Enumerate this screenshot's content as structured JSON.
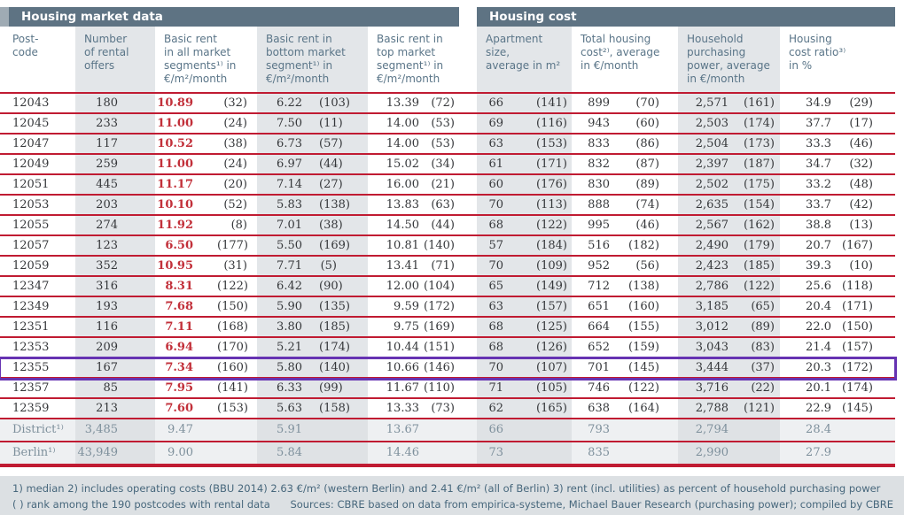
{
  "header": {
    "left_section_title": "Housing market data",
    "right_section_title": "Housing cost",
    "columns": [
      {
        "label": "Post-\ncode"
      },
      {
        "label": "Number\nof rental\noffers"
      },
      {
        "label": "Basic rent\nin all market\nsegments¹⁾ in\n€/m²/month"
      },
      {
        "label": "Basic rent in\nbottom market\nsegment¹⁾ in\n€/m²/month"
      },
      {
        "label": "Basic rent in\ntop market\nsegment¹⁾ in\n€/m²/month"
      },
      {
        "label": "Apartment size,\naverage in m²"
      },
      {
        "label": "Total housing\ncost²⁾, average\nin €/month"
      },
      {
        "label": "Household\npurchasing\npower, average\nin €/month"
      },
      {
        "label": "Housing\ncost ratio³⁾\nin %"
      }
    ]
  },
  "rows": [
    {
      "postcode": "12043",
      "offers": "180",
      "all": [
        "10.89",
        "(32)"
      ],
      "bottom": [
        "6.22",
        "(103)"
      ],
      "top": [
        "13.39",
        "(72)"
      ],
      "size": [
        "66",
        "(141)"
      ],
      "cost": [
        "899",
        "(70)"
      ],
      "power": [
        "2,571",
        "(161)"
      ],
      "ratio": [
        "34.9",
        "(29)"
      ],
      "highlighted": false
    },
    {
      "postcode": "12045",
      "offers": "233",
      "all": [
        "11.00",
        "(24)"
      ],
      "bottom": [
        "7.50",
        "(11)"
      ],
      "top": [
        "14.00",
        "(53)"
      ],
      "size": [
        "69",
        "(116)"
      ],
      "cost": [
        "943",
        "(60)"
      ],
      "power": [
        "2,503",
        "(174)"
      ],
      "ratio": [
        "37.7",
        "(17)"
      ],
      "highlighted": false
    },
    {
      "postcode": "12047",
      "offers": "117",
      "all": [
        "10.52",
        "(38)"
      ],
      "bottom": [
        "6.73",
        "(57)"
      ],
      "top": [
        "14.00",
        "(53)"
      ],
      "size": [
        "63",
        "(153)"
      ],
      "cost": [
        "833",
        "(86)"
      ],
      "power": [
        "2,504",
        "(173)"
      ],
      "ratio": [
        "33.3",
        "(46)"
      ],
      "highlighted": false
    },
    {
      "postcode": "12049",
      "offers": "259",
      "all": [
        "11.00",
        "(24)"
      ],
      "bottom": [
        "6.97",
        "(44)"
      ],
      "top": [
        "15.02",
        "(34)"
      ],
      "size": [
        "61",
        "(171)"
      ],
      "cost": [
        "832",
        "(87)"
      ],
      "power": [
        "2,397",
        "(187)"
      ],
      "ratio": [
        "34.7",
        "(32)"
      ],
      "highlighted": false
    },
    {
      "postcode": "12051",
      "offers": "445",
      "all": [
        "11.17",
        "(20)"
      ],
      "bottom": [
        "7.14",
        "(27)"
      ],
      "top": [
        "16.00",
        "(21)"
      ],
      "size": [
        "60",
        "(176)"
      ],
      "cost": [
        "830",
        "(89)"
      ],
      "power": [
        "2,502",
        "(175)"
      ],
      "ratio": [
        "33.2",
        "(48)"
      ],
      "highlighted": false
    },
    {
      "postcode": "12053",
      "offers": "203",
      "all": [
        "10.10",
        "(52)"
      ],
      "bottom": [
        "5.83",
        "(138)"
      ],
      "top": [
        "13.83",
        "(63)"
      ],
      "size": [
        "70",
        "(113)"
      ],
      "cost": [
        "888",
        "(74)"
      ],
      "power": [
        "2,635",
        "(154)"
      ],
      "ratio": [
        "33.7",
        "(42)"
      ],
      "highlighted": false
    },
    {
      "postcode": "12055",
      "offers": "274",
      "all": [
        "11.92",
        "(8)"
      ],
      "bottom": [
        "7.01",
        "(38)"
      ],
      "top": [
        "14.50",
        "(44)"
      ],
      "size": [
        "68",
        "(122)"
      ],
      "cost": [
        "995",
        "(46)"
      ],
      "power": [
        "2,567",
        "(162)"
      ],
      "ratio": [
        "38.8",
        "(13)"
      ],
      "highlighted": false
    },
    {
      "postcode": "12057",
      "offers": "123",
      "all": [
        "6.50",
        "(177)"
      ],
      "bottom": [
        "5.50",
        "(169)"
      ],
      "top": [
        "10.81",
        "(140)"
      ],
      "size": [
        "57",
        "(184)"
      ],
      "cost": [
        "516",
        "(182)"
      ],
      "power": [
        "2,490",
        "(179)"
      ],
      "ratio": [
        "20.7",
        "(167)"
      ],
      "highlighted": false
    },
    {
      "postcode": "12059",
      "offers": "352",
      "all": [
        "10.95",
        "(31)"
      ],
      "bottom": [
        "7.71",
        "(5)"
      ],
      "top": [
        "13.41",
        "(71)"
      ],
      "size": [
        "70",
        "(109)"
      ],
      "cost": [
        "952",
        "(56)"
      ],
      "power": [
        "2,423",
        "(185)"
      ],
      "ratio": [
        "39.3",
        "(10)"
      ],
      "highlighted": false
    },
    {
      "postcode": "12347",
      "offers": "316",
      "all": [
        "8.31",
        "(122)"
      ],
      "bottom": [
        "6.42",
        "(90)"
      ],
      "top": [
        "12.00",
        "(104)"
      ],
      "size": [
        "65",
        "(149)"
      ],
      "cost": [
        "712",
        "(138)"
      ],
      "power": [
        "2,786",
        "(122)"
      ],
      "ratio": [
        "25.6",
        "(118)"
      ],
      "highlighted": false
    },
    {
      "postcode": "12349",
      "offers": "193",
      "all": [
        "7.68",
        "(150)"
      ],
      "bottom": [
        "5.90",
        "(135)"
      ],
      "top": [
        "9.59",
        "(172)"
      ],
      "size": [
        "63",
        "(157)"
      ],
      "cost": [
        "651",
        "(160)"
      ],
      "power": [
        "3,185",
        "(65)"
      ],
      "ratio": [
        "20.4",
        "(171)"
      ],
      "highlighted": false
    },
    {
      "postcode": "12351",
      "offers": "116",
      "all": [
        "7.11",
        "(168)"
      ],
      "bottom": [
        "3.80",
        "(185)"
      ],
      "top": [
        "9.75",
        "(169)"
      ],
      "size": [
        "68",
        "(125)"
      ],
      "cost": [
        "664",
        "(155)"
      ],
      "power": [
        "3,012",
        "(89)"
      ],
      "ratio": [
        "22.0",
        "(150)"
      ],
      "highlighted": false
    },
    {
      "postcode": "12353",
      "offers": "209",
      "all": [
        "6.94",
        "(170)"
      ],
      "bottom": [
        "5.21",
        "(174)"
      ],
      "top": [
        "10.44",
        "(151)"
      ],
      "size": [
        "68",
        "(126)"
      ],
      "cost": [
        "652",
        "(159)"
      ],
      "power": [
        "3,043",
        "(83)"
      ],
      "ratio": [
        "21.4",
        "(157)"
      ],
      "highlighted": false
    },
    {
      "postcode": "12355",
      "offers": "167",
      "all": [
        "7.34",
        "(160)"
      ],
      "bottom": [
        "5.80",
        "(140)"
      ],
      "top": [
        "10.66",
        "(146)"
      ],
      "size": [
        "70",
        "(107)"
      ],
      "cost": [
        "701",
        "(145)"
      ],
      "power": [
        "3,444",
        "(37)"
      ],
      "ratio": [
        "20.3",
        "(172)"
      ],
      "highlighted": true
    },
    {
      "postcode": "12357",
      "offers": "85",
      "all": [
        "7.95",
        "(141)"
      ],
      "bottom": [
        "6.33",
        "(99)"
      ],
      "top": [
        "11.67",
        "(110)"
      ],
      "size": [
        "71",
        "(105)"
      ],
      "cost": [
        "746",
        "(122)"
      ],
      "power": [
        "3,716",
        "(22)"
      ],
      "ratio": [
        "20.1",
        "(174)"
      ],
      "highlighted": false
    },
    {
      "postcode": "12359",
      "offers": "213",
      "all": [
        "7.60",
        "(153)"
      ],
      "bottom": [
        "5.63",
        "(158)"
      ],
      "top": [
        "13.33",
        "(73)"
      ],
      "size": [
        "62",
        "(165)"
      ],
      "cost": [
        "638",
        "(164)"
      ],
      "power": [
        "2,788",
        "(121)"
      ],
      "ratio": [
        "22.9",
        "(145)"
      ],
      "highlighted": false
    }
  ],
  "summary_rows": [
    {
      "postcode": "District¹⁾",
      "offers": "3,485",
      "all": [
        "9.47",
        ""
      ],
      "bottom": [
        "5.91",
        ""
      ],
      "top": [
        "13.67",
        ""
      ],
      "size": [
        "66",
        ""
      ],
      "cost": [
        "793",
        ""
      ],
      "power": [
        "2,794",
        ""
      ],
      "ratio": [
        "28.4",
        ""
      ]
    },
    {
      "postcode": "Berlin¹⁾",
      "offers": "43,949",
      "all": [
        "9.00",
        ""
      ],
      "bottom": [
        "5.84",
        ""
      ],
      "top": [
        "14.46",
        ""
      ],
      "size": [
        "73",
        ""
      ],
      "cost": [
        "835",
        ""
      ],
      "power": [
        "2,990",
        ""
      ],
      "ratio": [
        "27.9",
        ""
      ]
    }
  ],
  "footnotes": {
    "line1": "1) median   2) includes operating costs (BBU 2014) 2.63 €/m² (western Berlin) and 2.41 €/m² (all of Berlin)   3) rent (incl. utilities) as percent of household purchasing power",
    "rank_note": "( ) rank among the 190 postcodes with rental data",
    "sources": "Sources: CBRE based on data from empirica-systeme, Michael Bauer Research (purchasing power); compiled by CBRE"
  },
  "colors": {
    "section_bar": "#5e7383",
    "header_text": "#5a7588",
    "column_stripe": "#e3e6e9",
    "rule_red": "#c01b32",
    "value_red": "#c2303a",
    "highlight_purple": "#6633b2",
    "summary_text": "#7e909c",
    "footer_bg": "#dce0e3",
    "footer_text": "#47677c"
  }
}
